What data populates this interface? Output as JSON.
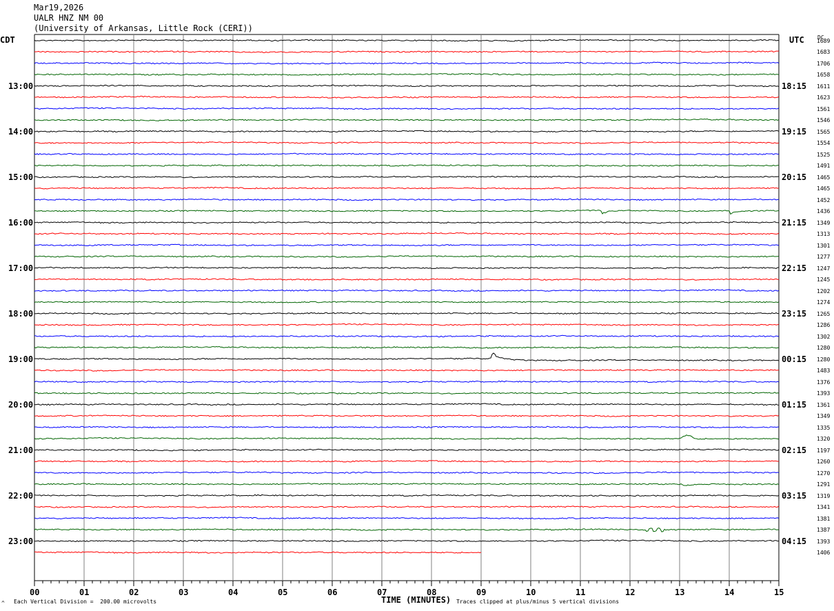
{
  "header": {
    "date": "Mar19,2026",
    "station": "UALR HNZ NM 00",
    "institution": "(University of Arkansas, Little Rock (CERI))"
  },
  "left_tz": "CDT",
  "right_tz": "UTC",
  "dc_header": "DC",
  "footer": {
    "scale": "Each Vertical Division =  200.00 microvolts",
    "clip": "Traces clipped at plus/minus 5 vertical divisions",
    "corner_mark": "^"
  },
  "colors": {
    "black": "#000000",
    "red": "#ff0000",
    "blue": "#0000ff",
    "green": "#006400",
    "grid": "#808080"
  },
  "chart_data": {
    "type": "line",
    "title": "",
    "xlabel": "TIME (MINUTES)",
    "x_ticks": [
      "00",
      "01",
      "02",
      "03",
      "04",
      "05",
      "06",
      "07",
      "08",
      "09",
      "10",
      "11",
      "12",
      "13",
      "14",
      "15"
    ],
    "xlim": [
      0,
      15
    ],
    "trace_colors": [
      "black",
      "red",
      "blue",
      "green"
    ],
    "rows_per_hour": 4,
    "trace_count": 46,
    "last_trace_end_minute": 9.0,
    "left_hour_labels": [
      "13:00",
      "14:00",
      "15:00",
      "16:00",
      "17:00",
      "18:00",
      "19:00",
      "20:00",
      "21:00",
      "22:00",
      "23:00"
    ],
    "right_hour_labels": [
      "18:15",
      "19:15",
      "20:15",
      "21:15",
      "22:15",
      "23:15",
      "00:15",
      "01:15",
      "02:15",
      "03:15",
      "04:15"
    ],
    "dc_offsets": [
      "1689",
      "1683",
      "1706",
      "1658",
      "1611",
      "1623",
      "1561",
      "1546",
      "1565",
      "1554",
      "1525",
      "1491",
      "1465",
      "1465",
      "1452",
      "1436",
      "1349",
      "1313",
      "1301",
      "1277",
      "1247",
      "1245",
      "1202",
      "1274",
      "1265",
      "1286",
      "1302",
      "1280",
      "1280",
      "1483",
      "1376",
      "1393",
      "1361",
      "1349",
      "1335",
      "1320",
      "1197",
      "1260",
      "1270",
      "1291",
      "1319",
      "1341",
      "1381",
      "1387",
      "1393",
      "1406"
    ],
    "events": [
      {
        "trace": 15,
        "minute": 11.4,
        "shape": "dip",
        "amp": -6
      },
      {
        "trace": 15,
        "minute": 14.0,
        "shape": "dip",
        "amp": -5
      },
      {
        "trace": 28,
        "minute": 9.2,
        "shape": "spike_decay",
        "amp": -10
      },
      {
        "trace": 35,
        "minute": 13.0,
        "shape": "step",
        "amp": -5
      },
      {
        "trace": 39,
        "minute": 13.05,
        "shape": "dip",
        "amp": -3
      },
      {
        "trace": 43,
        "minute": 12.3,
        "shape": "wobble",
        "amp": 3
      }
    ]
  }
}
